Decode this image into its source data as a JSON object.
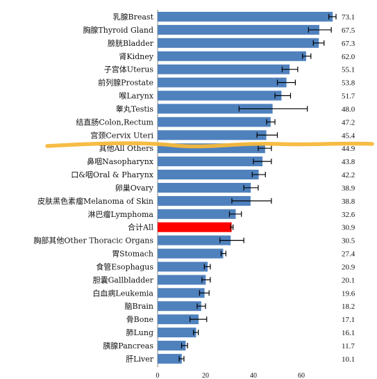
{
  "chart_data": {
    "type": "bar",
    "orientation": "horizontal",
    "title": "",
    "xlabel": "",
    "ylabel": "",
    "xlim": [
      0,
      80
    ],
    "x_ticks": [
      "0",
      "20",
      "40",
      "60"
    ],
    "grid": false,
    "colors": {
      "bar": "#4f81bd",
      "highlight": "#ff0000",
      "error_bar": "#000000",
      "annotation_line": "#f5b83a"
    },
    "highlight_category": "合计All",
    "categories": [
      "乳腺Breast",
      "胸腺Thyroid Gland",
      "膀胱Bladder",
      "肾Kidney",
      "子宫体Uterus",
      "前列腺Prostate",
      "喉Larynx",
      "睾丸Testis",
      "结直肠Colon,Rectum",
      "宫颈Cervix Uteri",
      "其他All Others",
      "鼻咽Nasopharynx",
      "口&咽Oral & Pharynx",
      "卵巢Ovary",
      "皮肤黑色素瘤Melanoma of Skin",
      "淋巴瘤Lymphoma",
      "合计All",
      "胸部其他Other Thoracic Organs",
      "胃Stomach",
      "食管Esophagus",
      "胆囊Gallbladder",
      "白血病Leukemia",
      "脑Brain",
      "骨Bone",
      "肺Lung",
      "胰腺Pancreas",
      "肝Liver"
    ],
    "values": [
      73.1,
      67.5,
      67.3,
      62.0,
      55.1,
      53.8,
      51.7,
      48.0,
      47.2,
      45.4,
      44.9,
      43.8,
      42.2,
      38.9,
      38.8,
      32.6,
      30.9,
      30.5,
      27.4,
      20.9,
      20.1,
      19.6,
      18.2,
      17.1,
      16.1,
      11.7,
      10.1
    ],
    "value_labels": [
      "73.1",
      "67.5",
      "67.3",
      "62.0",
      "55.1",
      "53.8",
      "51.7",
      "48.0",
      "47.2",
      "45.4",
      "44.9",
      "43.8",
      "42.2",
      "38.9",
      "38.8",
      "32.6",
      "30.9",
      "30.5",
      "27.4",
      "20.9",
      "20.1",
      "19.6",
      "18.2",
      "17.1",
      "16.1",
      "11.7",
      "10.1"
    ],
    "error_low": [
      71.5,
      63.0,
      65.0,
      60.5,
      52.0,
      50.0,
      49.0,
      34.0,
      45.5,
      41.5,
      42.0,
      40.0,
      39.5,
      36.0,
      31.0,
      30.0,
      30.5,
      26.0,
      26.5,
      19.5,
      18.5,
      17.5,
      16.5,
      13.5,
      15.0,
      10.0,
      9.0
    ],
    "error_high": [
      74.5,
      72.5,
      69.5,
      64.0,
      58.5,
      57.5,
      55.5,
      62.5,
      49.0,
      50.0,
      47.5,
      47.5,
      45.0,
      42.0,
      47.5,
      35.0,
      31.5,
      36.0,
      28.5,
      22.0,
      22.0,
      21.5,
      20.0,
      20.5,
      17.0,
      12.5,
      11.0
    ]
  }
}
